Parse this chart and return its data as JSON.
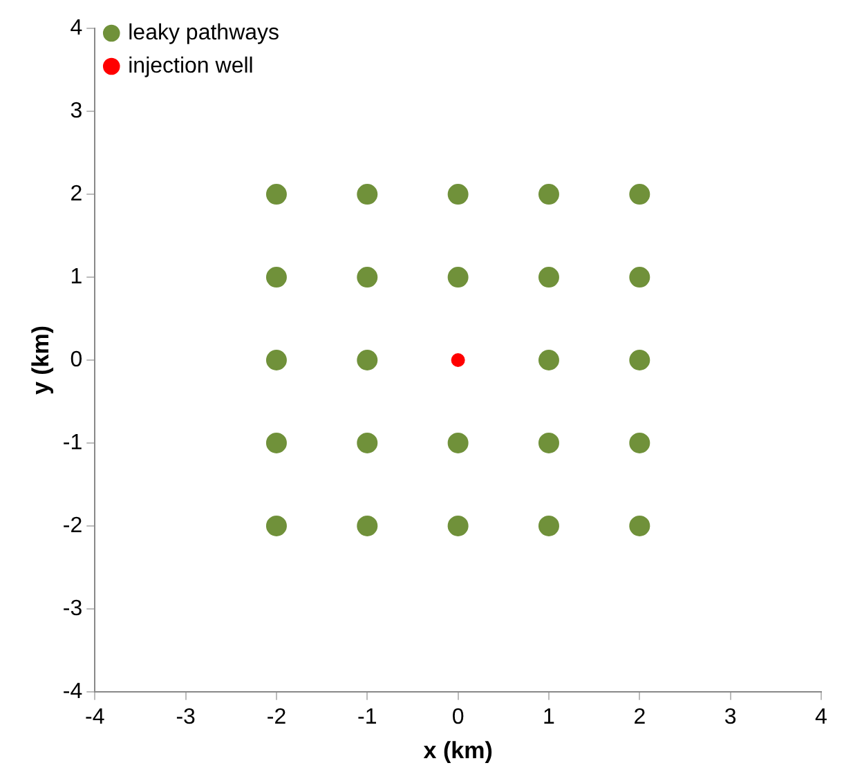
{
  "chart_data": {
    "type": "scatter",
    "xlabel": "x (km)",
    "ylabel": "y (km)",
    "xlim": [
      -4,
      4
    ],
    "ylim": [
      -4,
      4
    ],
    "xticks": [
      -4,
      -3,
      -2,
      -1,
      0,
      1,
      2,
      3,
      4
    ],
    "yticks": [
      -4,
      -3,
      -2,
      -1,
      0,
      1,
      2,
      3,
      4
    ],
    "grid": false,
    "legend": "top left",
    "marker": "circle",
    "series": [
      {
        "name": "leaky pathways",
        "color": "#70913a",
        "x": [
          -2,
          -1,
          0,
          1,
          2,
          -2,
          -1,
          0,
          1,
          2,
          -2,
          -1,
          1,
          2,
          -2,
          -1,
          0,
          1,
          2,
          -2,
          -1,
          0,
          1,
          2
        ],
        "values": [
          2,
          2,
          2,
          2,
          2,
          1,
          1,
          1,
          1,
          1,
          0,
          0,
          0,
          0,
          -1,
          -1,
          -1,
          -1,
          -1,
          -2,
          -2,
          -2,
          -2,
          -2
        ]
      },
      {
        "name": "injection well",
        "color": "#ff0000",
        "x": [
          0
        ],
        "values": [
          0
        ]
      }
    ]
  }
}
